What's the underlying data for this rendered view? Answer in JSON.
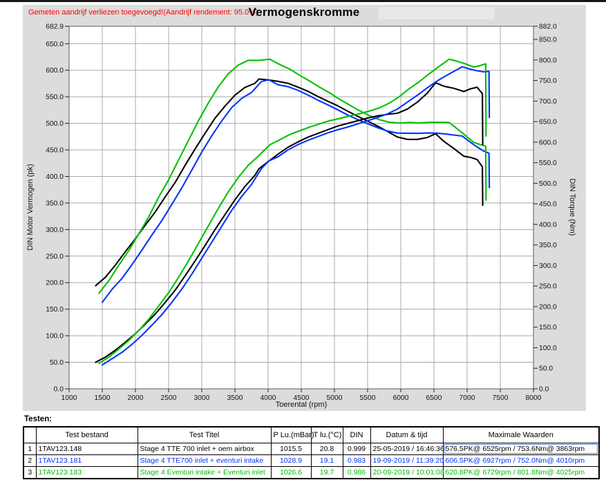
{
  "header": {
    "annotation": "Gemeten aandrijf verliezen toegevoegd!(Aandrijf rendement: 95.0%)",
    "title": "Vermogenskromme",
    "annotation_color": "#ff0000"
  },
  "chart_data": {
    "type": "line",
    "title": "Vermogenskromme",
    "grid": true,
    "legend_position": "none",
    "x_axis": {
      "title": "Toerental (rpm)",
      "min": 1000,
      "max": 8000,
      "ticks": [
        1000,
        1500,
        2000,
        2500,
        3000,
        3500,
        4000,
        4500,
        5000,
        5500,
        6000,
        6500,
        7000,
        7500,
        8000
      ]
    },
    "y_left": {
      "title": "DIN Motor Vermogen (pk)",
      "min": 0,
      "max": 682.9,
      "ticks": [
        682.9,
        650,
        600,
        550,
        500,
        450,
        400,
        350,
        300,
        250,
        200,
        150,
        100,
        50,
        0
      ]
    },
    "y_right": {
      "title": "DIN Torque (Nm)",
      "min": 0,
      "max": 882,
      "ticks": [
        882,
        850,
        800,
        750,
        700,
        650,
        600,
        550,
        500,
        450,
        400,
        350,
        300,
        250,
        200,
        150,
        100,
        50,
        0
      ]
    },
    "series": [
      {
        "name": "Stage 4 TTE 700 inlet + oem airbox",
        "color": "#000000",
        "power_pk": [
          [
            1400,
            50
          ],
          [
            1550,
            60
          ],
          [
            1700,
            73
          ],
          [
            1850,
            88
          ],
          [
            2000,
            104
          ],
          [
            2150,
            122
          ],
          [
            2300,
            141
          ],
          [
            2450,
            163
          ],
          [
            2600,
            186
          ],
          [
            2750,
            213
          ],
          [
            2900,
            241
          ],
          [
            3050,
            270
          ],
          [
            3200,
            300
          ],
          [
            3350,
            328
          ],
          [
            3500,
            356
          ],
          [
            3650,
            381
          ],
          [
            3800,
            402
          ],
          [
            3863,
            414.6
          ],
          [
            4000,
            428
          ],
          [
            4150,
            442
          ],
          [
            4300,
            455
          ],
          [
            4450,
            465
          ],
          [
            4600,
            474
          ],
          [
            4750,
            481
          ],
          [
            4900,
            488
          ],
          [
            5050,
            495
          ],
          [
            5200,
            500
          ],
          [
            5350,
            505
          ],
          [
            5500,
            510
          ],
          [
            5650,
            514
          ],
          [
            5800,
            517
          ],
          [
            5950,
            519
          ],
          [
            6100,
            527
          ],
          [
            6250,
            540
          ],
          [
            6400,
            557
          ],
          [
            6525,
            576.5
          ],
          [
            6650,
            570
          ],
          [
            6800,
            566
          ],
          [
            6950,
            560
          ],
          [
            7050,
            565
          ],
          [
            7150,
            568
          ],
          [
            7230,
            556
          ],
          [
            7235,
            460
          ]
        ],
        "torque_nm": [
          [
            1400,
            250.8
          ],
          [
            1550,
            271.9
          ],
          [
            1700,
            301.6
          ],
          [
            1850,
            334.1
          ],
          [
            2000,
            365.2
          ],
          [
            2150,
            398.5
          ],
          [
            2300,
            430.6
          ],
          [
            2450,
            467.3
          ],
          [
            2600,
            502.4
          ],
          [
            2750,
            544.0
          ],
          [
            2900,
            583.7
          ],
          [
            3050,
            621.8
          ],
          [
            3200,
            658.4
          ],
          [
            3350,
            687.7
          ],
          [
            3500,
            714.4
          ],
          [
            3650,
            733.1
          ],
          [
            3800,
            743.0
          ],
          [
            3863,
            753.6
          ],
          [
            4000,
            751.5
          ],
          [
            4150,
            748.0
          ],
          [
            4300,
            743.2
          ],
          [
            4450,
            734.0
          ],
          [
            4600,
            723.8
          ],
          [
            4750,
            711.2
          ],
          [
            4900,
            699.5
          ],
          [
            5050,
            688.4
          ],
          [
            5200,
            675.3
          ],
          [
            5350,
            663.0
          ],
          [
            5500,
            651.3
          ],
          [
            5650,
            639.0
          ],
          [
            5800,
            626.1
          ],
          [
            5950,
            612.6
          ],
          [
            6100,
            606.8
          ],
          [
            6250,
            606.8
          ],
          [
            6400,
            611.3
          ],
          [
            6525,
            620.6
          ],
          [
            6650,
            602.0
          ],
          [
            6800,
            584.6
          ],
          [
            6950,
            565.9
          ],
          [
            7050,
            562.9
          ],
          [
            7150,
            557.9
          ],
          [
            7230,
            540.1
          ],
          [
            7235,
            446.5
          ]
        ],
        "max_power": "576.5PK@ 6525rpm",
        "max_torque": "753.6Nm@ 3863rpm"
      },
      {
        "name": "Stage 4 TTE700 inlet + eventuri intake",
        "color": "#0033ff",
        "power_pk": [
          [
            1500,
            45
          ],
          [
            1650,
            57
          ],
          [
            1800,
            69
          ],
          [
            1950,
            84
          ],
          [
            2100,
            101
          ],
          [
            2250,
            120
          ],
          [
            2400,
            140
          ],
          [
            2550,
            163
          ],
          [
            2700,
            188
          ],
          [
            2850,
            216
          ],
          [
            3000,
            246
          ],
          [
            3150,
            276
          ],
          [
            3300,
            306
          ],
          [
            3450,
            336
          ],
          [
            3600,
            362
          ],
          [
            3750,
            385
          ],
          [
            3900,
            415
          ],
          [
            4010,
            429.3
          ],
          [
            4150,
            437
          ],
          [
            4300,
            450
          ],
          [
            4450,
            460
          ],
          [
            4600,
            468
          ],
          [
            4750,
            475
          ],
          [
            4900,
            482
          ],
          [
            5050,
            488
          ],
          [
            5200,
            493
          ],
          [
            5350,
            499
          ],
          [
            5500,
            505
          ],
          [
            5650,
            511
          ],
          [
            5800,
            518
          ],
          [
            5950,
            527
          ],
          [
            6100,
            540
          ],
          [
            6250,
            553
          ],
          [
            6400,
            567
          ],
          [
            6550,
            580
          ],
          [
            6700,
            591
          ],
          [
            6927,
            606.5
          ],
          [
            7050,
            602
          ],
          [
            7150,
            599
          ],
          [
            7250,
            597
          ],
          [
            7330,
            598
          ],
          [
            7335,
            511
          ]
        ],
        "torque_nm": [
          [
            1500,
            210.7
          ],
          [
            1650,
            242.6
          ],
          [
            1800,
            269.2
          ],
          [
            1950,
            302.6
          ],
          [
            2100,
            337.8
          ],
          [
            2250,
            374.6
          ],
          [
            2400,
            409.7
          ],
          [
            2550,
            449.0
          ],
          [
            2700,
            489.0
          ],
          [
            2850,
            532.3
          ],
          [
            3000,
            575.9
          ],
          [
            3150,
            615.4
          ],
          [
            3300,
            651.3
          ],
          [
            3450,
            684.0
          ],
          [
            3600,
            706.3
          ],
          [
            3750,
            721.1
          ],
          [
            3900,
            747.4
          ],
          [
            4010,
            752.0
          ],
          [
            4150,
            739.6
          ],
          [
            4300,
            735.0
          ],
          [
            4450,
            726.1
          ],
          [
            4600,
            714.6
          ],
          [
            4750,
            702.3
          ],
          [
            4900,
            690.9
          ],
          [
            5050,
            678.7
          ],
          [
            5200,
            665.9
          ],
          [
            5350,
            655.1
          ],
          [
            5500,
            644.9
          ],
          [
            5650,
            635.2
          ],
          [
            5800,
            627.2
          ],
          [
            5950,
            622.1
          ],
          [
            6100,
            621.8
          ],
          [
            6250,
            621.5
          ],
          [
            6400,
            622.2
          ],
          [
            6550,
            621.9
          ],
          [
            6700,
            619.5
          ],
          [
            6927,
            614.9
          ],
          [
            7050,
            599.7
          ],
          [
            7150,
            588.4
          ],
          [
            7250,
            578.4
          ],
          [
            7330,
            573.0
          ],
          [
            7335,
            489.3
          ]
        ],
        "max_power": "606.5PK@ 6927rpm",
        "max_torque": "752.0Nm@ 4010rpm"
      },
      {
        "name": "Stage 4 Eventuri intake + Eventuri inlet",
        "color": "#00c000",
        "power_pk": [
          [
            1450,
            48
          ],
          [
            1600,
            60
          ],
          [
            1750,
            75
          ],
          [
            1900,
            91
          ],
          [
            2050,
            110
          ],
          [
            2200,
            131
          ],
          [
            2350,
            156
          ],
          [
            2500,
            181
          ],
          [
            2650,
            210
          ],
          [
            2800,
            241
          ],
          [
            2950,
            274
          ],
          [
            3100,
            307
          ],
          [
            3250,
            340
          ],
          [
            3400,
            371
          ],
          [
            3550,
            398
          ],
          [
            3700,
            421
          ],
          [
            3850,
            438
          ],
          [
            4025,
            459.6
          ],
          [
            4175,
            469
          ],
          [
            4325,
            479
          ],
          [
            4475,
            486
          ],
          [
            4625,
            493
          ],
          [
            4775,
            499
          ],
          [
            4925,
            505
          ],
          [
            5075,
            509
          ],
          [
            5225,
            514
          ],
          [
            5375,
            518
          ],
          [
            5525,
            523
          ],
          [
            5675,
            529
          ],
          [
            5825,
            538
          ],
          [
            5975,
            550
          ],
          [
            6125,
            565
          ],
          [
            6275,
            578
          ],
          [
            6425,
            593
          ],
          [
            6575,
            607
          ],
          [
            6729,
            620.8
          ],
          [
            6850,
            617
          ],
          [
            6975,
            612
          ],
          [
            7100,
            606
          ],
          [
            7200,
            609
          ],
          [
            7280,
            612
          ],
          [
            7285,
            476
          ]
        ],
        "torque_nm": [
          [
            1450,
            232.5
          ],
          [
            1600,
            263.4
          ],
          [
            1750,
            301.0
          ],
          [
            1900,
            336.4
          ],
          [
            2050,
            376.9
          ],
          [
            2200,
            418.2
          ],
          [
            2350,
            466.2
          ],
          [
            2500,
            508.5
          ],
          [
            2650,
            556.6
          ],
          [
            2800,
            604.5
          ],
          [
            2950,
            652.3
          ],
          [
            3100,
            695.5
          ],
          [
            3250,
            734.8
          ],
          [
            3400,
            766.4
          ],
          [
            3550,
            787.4
          ],
          [
            3700,
            799.2
          ],
          [
            3850,
            799.0
          ],
          [
            4025,
            801.8
          ],
          [
            4175,
            789.0
          ],
          [
            4325,
            777.9
          ],
          [
            4475,
            762.8
          ],
          [
            4625,
            748.7
          ],
          [
            4775,
            734.0
          ],
          [
            4925,
            720.2
          ],
          [
            5075,
            704.4
          ],
          [
            5225,
            690.9
          ],
          [
            5375,
            676.9
          ],
          [
            5525,
            664.8
          ],
          [
            5675,
            654.7
          ],
          [
            5825,
            648.7
          ],
          [
            5975,
            646.5
          ],
          [
            6125,
            647.9
          ],
          [
            6275,
            647.0
          ],
          [
            6425,
            648.2
          ],
          [
            6575,
            648.4
          ],
          [
            6729,
            648.0
          ],
          [
            6850,
            632.6
          ],
          [
            6975,
            616.3
          ],
          [
            7100,
            599.4
          ],
          [
            7200,
            594.1
          ],
          [
            7280,
            590.5
          ],
          [
            7285,
            458.9
          ]
        ],
        "max_power": "620.8PK@ 6729rpm",
        "max_torque": "801.8Nm@ 4025rpm"
      }
    ]
  },
  "table": {
    "caption": "Testen:",
    "columns": [
      "",
      "Test bestand",
      "Test Titel",
      "P Lu.(mBar)",
      "T lu.(°C)",
      "DIN",
      "Datum & tijd",
      "Maximale Waarden"
    ],
    "rows": [
      {
        "num": "1",
        "color": "#000000",
        "test_bestand": "1TAV123.148",
        "test_titel": "Stage 4 TTE 700 inlet + oem airbox",
        "p_lu": "1015.5",
        "t_lu": "20.8",
        "din": "0.999",
        "datum_tijd": "25-05-2019 / 16:46:36",
        "maximale_waarden": "576.5PK@ 6525rpm / 753.6Nm@ 3863rpm",
        "max_cell_selected": true
      },
      {
        "num": "2",
        "color": "#0033ff",
        "test_bestand": "1TAV123.181",
        "test_titel": "Stage 4 TTE700 inlet + eventuri intake",
        "p_lu": "1028.9",
        "t_lu": "19.1",
        "din": "0.983",
        "datum_tijd": "19-09-2019 / 11:39:20",
        "maximale_waarden": "606.5PK@ 6927rpm / 752.0Nm@ 4010rpm",
        "max_cell_selected": false
      },
      {
        "num": "3",
        "color": "#00c000",
        "test_bestand": "1TAV123.183",
        "test_titel": "Stage 4 Eventuri intake + Eventuri inlet",
        "p_lu": "1026.6",
        "t_lu": "19.7",
        "din": "0.986",
        "datum_tijd": "20-09-2019 / 10:01:08",
        "maximale_waarden": "620.8PK@ 6729rpm / 801.8Nm@ 4025rpm",
        "max_cell_selected": false
      }
    ]
  }
}
